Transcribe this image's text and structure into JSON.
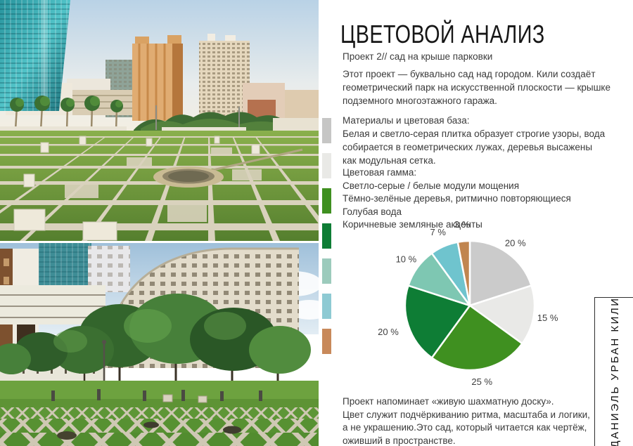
{
  "page": {
    "title": "ЦВЕТОВОЙ АНАЛИЗ",
    "subtitle": "Проект 2// сад на крыше парковки",
    "intro": "Этот проект — буквально сад над городом. Кили создаёт\nгеометрический парк на искусственной плоскости — крышке\nподземного многоэтажного гаража.",
    "materials": "Материалы и цветовая база:\nБелая и светло-серая плитка образует строгие узоры, вода\nсобирается в геометрических лужах, деревья высажены\nкак модульная сетка.",
    "gamma": "Цветовая гамма:\nСветло-серые / белые модули мощения\nТёмно-зелёные деревья, ритмично повторяющиеся\nГолубая вода\nКоричневые земляные акценты",
    "outro": "Проект напоминает «живую шахматную доску».\nЦвет служит подчёркиванию ритма, масштаба и логики,\nа не украшению.Это сад, который читается как чертёж,\nоживший в пространстве.",
    "author_vertical": "ДАНИЭЛЬ УРБАН КИЛИ"
  },
  "swatches": [
    {
      "name": "paving-gray",
      "color": "#c6c6c5"
    },
    {
      "name": "paving-light-gray",
      "color": "#e9e9e6"
    },
    {
      "name": "tree-green",
      "color": "#3f9020"
    },
    {
      "name": "tree-dark-green",
      "color": "#0e7d35"
    },
    {
      "name": "water-sage",
      "color": "#9ccbbc"
    },
    {
      "name": "water-light-blue",
      "color": "#8ecad3"
    },
    {
      "name": "earth-brown",
      "color": "#c8895a"
    }
  ],
  "chart_data": {
    "type": "pie",
    "start_angle_deg": 0,
    "clockwise": true,
    "label_color": "#3f3f3f",
    "slices": [
      {
        "name": "paving-gray",
        "label": "20 %",
        "value": 20,
        "color": "#cbcbcb",
        "label_r": 110
      },
      {
        "name": "paving-white",
        "label": "15 %",
        "value": 15,
        "color": "#e9e9e7",
        "label_r": 112
      },
      {
        "name": "green",
        "label": "25 %",
        "value": 25,
        "color": "#3f9020",
        "label_r": 110
      },
      {
        "name": "dark-green",
        "label": "20 %",
        "value": 20,
        "color": "#0e7d35",
        "label_r": 122
      },
      {
        "name": "sage",
        "label": "10 %",
        "value": 10,
        "color": "#7ec7b2",
        "label_r": 112
      },
      {
        "name": "light-blue",
        "label": "7 %",
        "value": 7,
        "color": "#6fc4ce",
        "label_r": 114
      },
      {
        "name": "earth-brown",
        "label": "3 %",
        "value": 3,
        "color": "#c1854f",
        "label_r": 116
      }
    ]
  }
}
